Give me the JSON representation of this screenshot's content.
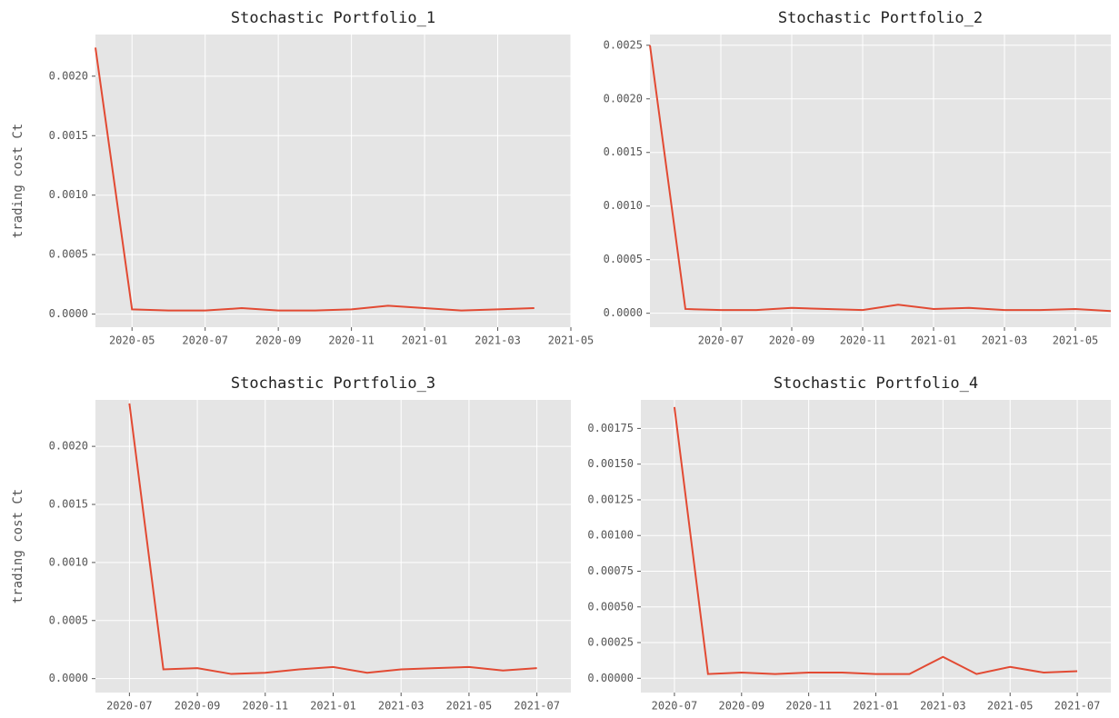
{
  "chart_data": [
    {
      "type": "line",
      "title": "Stochastic Portfolio_1",
      "ylabel": "trading cost Ct",
      "color": "#e24a33",
      "grid": true,
      "x": [
        "2020-04",
        "2020-05",
        "2020-06",
        "2020-07",
        "2020-08",
        "2020-09",
        "2020-10",
        "2020-11",
        "2020-12",
        "2021-01",
        "2021-02",
        "2021-03",
        "2021-04"
      ],
      "values": [
        0.00224,
        4e-05,
        3e-05,
        3e-05,
        5e-05,
        3e-05,
        3e-05,
        4e-05,
        7e-05,
        5e-05,
        3e-05,
        4e-05,
        5e-05
      ],
      "xlim": [
        "2020-04",
        "2021-05"
      ],
      "xticks": [
        "2020-05",
        "2020-07",
        "2020-09",
        "2020-11",
        "2021-01",
        "2021-03",
        "2021-05"
      ],
      "ylim": [
        -0.00011,
        0.00235
      ],
      "yticks": [
        {
          "value": 0,
          "label": "0.0000"
        },
        {
          "value": 0.0005,
          "label": "0.0005"
        },
        {
          "value": 0.001,
          "label": "0.0010"
        },
        {
          "value": 0.0015,
          "label": "0.0015"
        },
        {
          "value": 0.002,
          "label": "0.0020"
        }
      ]
    },
    {
      "type": "line",
      "title": "Stochastic Portfolio_2",
      "color": "#e24a33",
      "grid": true,
      "x": [
        "2020-05",
        "2020-06",
        "2020-07",
        "2020-08",
        "2020-09",
        "2020-10",
        "2020-11",
        "2020-12",
        "2021-01",
        "2021-02",
        "2021-03",
        "2021-04",
        "2021-05",
        "2021-06"
      ],
      "values": [
        0.0025,
        4e-05,
        3e-05,
        3e-05,
        5e-05,
        4e-05,
        3e-05,
        8e-05,
        4e-05,
        5e-05,
        3e-05,
        3e-05,
        4e-05,
        2e-05
      ],
      "xlim": [
        "2020-05",
        "2021-06"
      ],
      "xticks": [
        "2020-07",
        "2020-09",
        "2020-11",
        "2021-01",
        "2021-03",
        "2021-05"
      ],
      "ylim": [
        -0.00013,
        0.0026
      ],
      "yticks": [
        {
          "value": 0,
          "label": "0.0000"
        },
        {
          "value": 0.0005,
          "label": "0.0005"
        },
        {
          "value": 0.001,
          "label": "0.0010"
        },
        {
          "value": 0.0015,
          "label": "0.0015"
        },
        {
          "value": 0.002,
          "label": "0.0020"
        },
        {
          "value": 0.0025,
          "label": "0.0025"
        }
      ]
    },
    {
      "type": "line",
      "title": "Stochastic Portfolio_3",
      "ylabel": "trading cost Ct",
      "color": "#e24a33",
      "grid": true,
      "x": [
        "2020-07",
        "2020-08",
        "2020-09",
        "2020-10",
        "2020-11",
        "2020-12",
        "2021-01",
        "2021-02",
        "2021-03",
        "2021-04",
        "2021-05",
        "2021-06",
        "2021-07"
      ],
      "values": [
        0.00237,
        8e-05,
        9e-05,
        4e-05,
        5e-05,
        8e-05,
        0.0001,
        5e-05,
        8e-05,
        9e-05,
        0.0001,
        7e-05,
        9e-05
      ],
      "xlim": [
        "2020-06",
        "2021-08"
      ],
      "xticks": [
        "2020-07",
        "2020-09",
        "2020-11",
        "2021-01",
        "2021-03",
        "2021-05",
        "2021-07"
      ],
      "ylim": [
        -0.00012,
        0.0024
      ],
      "yticks": [
        {
          "value": 0,
          "label": "0.0000"
        },
        {
          "value": 0.0005,
          "label": "0.0005"
        },
        {
          "value": 0.001,
          "label": "0.0010"
        },
        {
          "value": 0.0015,
          "label": "0.0015"
        },
        {
          "value": 0.002,
          "label": "0.0020"
        }
      ]
    },
    {
      "type": "line",
      "title": "Stochastic Portfolio_4",
      "color": "#e24a33",
      "grid": true,
      "x": [
        "2020-07",
        "2020-08",
        "2020-09",
        "2020-10",
        "2020-11",
        "2020-12",
        "2021-01",
        "2021-02",
        "2021-03",
        "2021-04",
        "2021-05",
        "2021-06",
        "2021-07"
      ],
      "values": [
        0.0019,
        3e-05,
        4e-05,
        3e-05,
        4e-05,
        4e-05,
        3e-05,
        3e-05,
        0.00015,
        3e-05,
        8e-05,
        4e-05,
        5e-05
      ],
      "xlim": [
        "2020-06",
        "2021-08"
      ],
      "xticks": [
        "2020-07",
        "2020-09",
        "2020-11",
        "2021-01",
        "2021-03",
        "2021-05",
        "2021-07"
      ],
      "ylim": [
        -0.0001,
        0.00195
      ],
      "yticks": [
        {
          "value": 0,
          "label": "0.00000"
        },
        {
          "value": 0.00025,
          "label": "0.00025"
        },
        {
          "value": 0.0005,
          "label": "0.00050"
        },
        {
          "value": 0.00075,
          "label": "0.00075"
        },
        {
          "value": 0.001,
          "label": "0.00100"
        },
        {
          "value": 0.00125,
          "label": "0.00125"
        },
        {
          "value": 0.0015,
          "label": "0.00150"
        },
        {
          "value": 0.00175,
          "label": "0.00175"
        }
      ]
    }
  ]
}
